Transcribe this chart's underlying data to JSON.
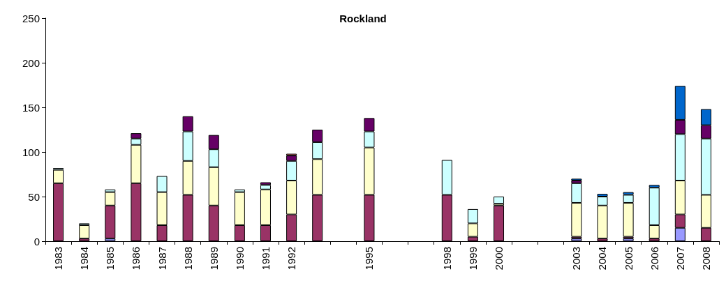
{
  "chart_data": {
    "type": "bar",
    "title": "Rockland",
    "stacked": true,
    "grid": false,
    "categories": [
      "1983",
      "1984",
      "1985",
      "1986",
      "1987",
      "1988",
      "1989",
      "1990",
      "1991",
      "1992",
      null,
      null,
      "1995",
      null,
      null,
      "1998",
      "1999",
      "2000",
      null,
      null,
      "2003",
      "2004",
      "2005",
      "2006",
      "2007",
      "2008"
    ],
    "ylim": [
      0,
      250
    ],
    "yticks": [
      0,
      50,
      100,
      150,
      200,
      250
    ],
    "series": [
      {
        "color": "#9999ff",
        "values": [
          null,
          null,
          3,
          null,
          null,
          null,
          null,
          null,
          null,
          null,
          null,
          null,
          null,
          null,
          null,
          null,
          null,
          null,
          null,
          null,
          3,
          null,
          3,
          null,
          15,
          null
        ]
      },
      {
        "color": "#993366",
        "values": [
          65,
          3,
          37,
          65,
          18,
          52,
          40,
          18,
          18,
          30,
          52,
          null,
          52,
          null,
          null,
          52,
          5,
          40,
          null,
          null,
          2,
          3,
          2,
          3,
          15,
          15
        ]
      },
      {
        "color": "#ffffcc",
        "values": [
          15,
          15,
          15,
          43,
          37,
          38,
          43,
          37,
          40,
          38,
          40,
          null,
          53,
          null,
          null,
          null,
          15,
          2,
          null,
          null,
          38,
          37,
          38,
          15,
          38,
          37
        ]
      },
      {
        "color": "#ccffff",
        "values": [
          2,
          2,
          3,
          7,
          18,
          33,
          20,
          3,
          5,
          22,
          19,
          null,
          18,
          null,
          null,
          39,
          16,
          8,
          null,
          null,
          22,
          10,
          9,
          42,
          52,
          63
        ]
      },
      {
        "color": "#660066",
        "values": [
          null,
          null,
          null,
          6,
          null,
          17,
          16,
          null,
          3,
          6,
          14,
          null,
          15,
          null,
          null,
          null,
          null,
          null,
          null,
          null,
          3,
          null,
          null,
          null,
          16,
          15
        ]
      },
      {
        "color": "#ff8080",
        "values": [
          null,
          null,
          null,
          null,
          null,
          null,
          null,
          null,
          null,
          2,
          null,
          null,
          null,
          null,
          null,
          null,
          null,
          null,
          null,
          null,
          null,
          null,
          null,
          null,
          null,
          null
        ]
      },
      {
        "color": "#0066cc",
        "values": [
          null,
          null,
          null,
          null,
          null,
          null,
          null,
          null,
          null,
          null,
          null,
          null,
          null,
          null,
          null,
          null,
          null,
          null,
          null,
          null,
          2,
          3,
          3,
          3,
          38,
          18
        ]
      }
    ]
  }
}
